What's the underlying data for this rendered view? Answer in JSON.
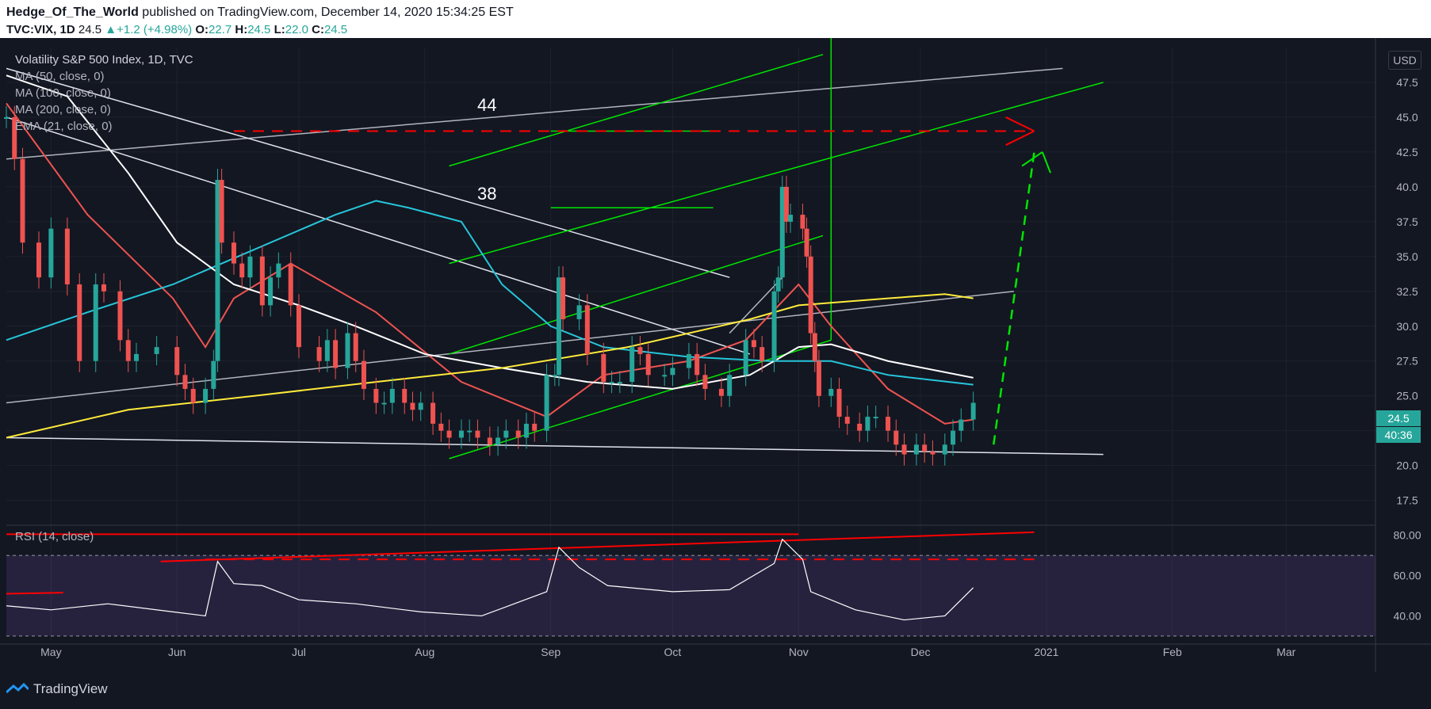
{
  "header": {
    "author": "Hedge_Of_The_World",
    "published": " published on TradingView.com, December 14, 2020 15:34:25 EST",
    "symbol": "TVC:VIX, 1D",
    "last": "24.5",
    "change": "+1.2 (+4.98%)",
    "o_label": "O:",
    "o_val": "22.7",
    "h_label": "H:",
    "h_val": "24.5",
    "l_label": "L:",
    "l_val": "22.0",
    "c_label": "C:",
    "c_val": "24.5"
  },
  "legend": {
    "title": "Volatility S&P 500 Index, 1D, TVC",
    "ma50": "MA (50, close, 0)",
    "ma100": "MA (100, close, 0)",
    "ma200": "MA (200, close, 0)",
    "ema21": "EMA (21, close, 0)",
    "rsi": "RSI (14, close)"
  },
  "currency": "USD",
  "price_tag": "24.5",
  "countdown_tag": "40:36",
  "annotations": {
    "level_44": "44",
    "level_38": "38"
  },
  "brand": "TradingView",
  "colors": {
    "background": "#131722",
    "up": "#26a69a",
    "down": "#ef5350",
    "ma50": "#ef5350",
    "ma100": "#26c6da",
    "ma200": "#ffffff",
    "ema21": "#ffeb3b",
    "trend_green": "#00e600",
    "resistance_red": "#ff0000",
    "rsi": "#ffffff"
  },
  "chart_data": [
    {
      "type": "candlestick",
      "title": "Volatility S&P 500 Index, 1D, TVC",
      "ylabel": "USD",
      "ylim": [
        16,
        50
      ],
      "y_ticks": [
        "17.5",
        "20.0",
        "22.5",
        "25.0",
        "27.5",
        "30.0",
        "32.5",
        "35.0",
        "37.5",
        "40.0",
        "42.5",
        "45.0",
        "47.5"
      ],
      "x_ticks": [
        {
          "label": "May",
          "date": "2020-05-01"
        },
        {
          "label": "Jun",
          "date": "2020-06-01"
        },
        {
          "label": "Jul",
          "date": "2020-07-01"
        },
        {
          "label": "Aug",
          "date": "2020-08-01"
        },
        {
          "label": "Sep",
          "date": "2020-09-01"
        },
        {
          "label": "Oct",
          "date": "2020-10-01"
        },
        {
          "label": "Nov",
          "date": "2020-11-01"
        },
        {
          "label": "Dec",
          "date": "2020-12-01"
        },
        {
          "label": "2021",
          "date": "2021-01-01"
        },
        {
          "label": "Feb",
          "date": "2021-02-01"
        },
        {
          "label": "Mar",
          "date": "2021-03-01"
        }
      ],
      "xlim": [
        "2020-04-20",
        "2021-03-23"
      ],
      "close_path": [
        [
          "2020-04-20",
          45.0
        ],
        [
          "2020-04-22",
          42.0
        ],
        [
          "2020-04-24",
          36.0
        ],
        [
          "2020-04-28",
          33.5
        ],
        [
          "2020-05-01",
          37.0
        ],
        [
          "2020-05-05",
          33.0
        ],
        [
          "2020-05-08",
          27.5
        ],
        [
          "2020-05-12",
          33.0
        ],
        [
          "2020-05-14",
          32.5
        ],
        [
          "2020-05-18",
          29.0
        ],
        [
          "2020-05-20",
          27.5
        ],
        [
          "2020-05-22",
          28.0
        ],
        [
          "2020-05-27",
          28.5
        ],
        [
          "2020-06-01",
          26.5
        ],
        [
          "2020-06-03",
          25.5
        ],
        [
          "2020-06-05",
          24.5
        ],
        [
          "2020-06-08",
          25.5
        ],
        [
          "2020-06-10",
          27.5
        ],
        [
          "2020-06-11",
          40.5
        ],
        [
          "2020-06-12",
          36.0
        ],
        [
          "2020-06-15",
          34.5
        ],
        [
          "2020-06-17",
          33.5
        ],
        [
          "2020-06-19",
          35.0
        ],
        [
          "2020-06-22",
          31.5
        ],
        [
          "2020-06-24",
          33.5
        ],
        [
          "2020-06-26",
          34.5
        ],
        [
          "2020-06-29",
          31.5
        ],
        [
          "2020-07-01",
          28.5
        ],
        [
          "2020-07-06",
          27.5
        ],
        [
          "2020-07-08",
          29.0
        ],
        [
          "2020-07-10",
          27.0
        ],
        [
          "2020-07-13",
          29.5
        ],
        [
          "2020-07-15",
          27.5
        ],
        [
          "2020-07-17",
          25.5
        ],
        [
          "2020-07-20",
          24.5
        ],
        [
          "2020-07-22",
          24.5
        ],
        [
          "2020-07-24",
          25.5
        ],
        [
          "2020-07-27",
          24.5
        ],
        [
          "2020-07-29",
          24.0
        ],
        [
          "2020-07-31",
          24.5
        ],
        [
          "2020-08-03",
          23.0
        ],
        [
          "2020-08-05",
          22.5
        ],
        [
          "2020-08-07",
          22.0
        ],
        [
          "2020-08-10",
          22.5
        ],
        [
          "2020-08-12",
          22.5
        ],
        [
          "2020-08-14",
          22.0
        ],
        [
          "2020-08-17",
          21.5
        ],
        [
          "2020-08-19",
          22.0
        ],
        [
          "2020-08-21",
          22.5
        ],
        [
          "2020-08-24",
          22.0
        ],
        [
          "2020-08-26",
          23.0
        ],
        [
          "2020-08-28",
          22.5
        ],
        [
          "2020-08-31",
          26.5
        ],
        [
          "2020-09-02",
          26.5
        ],
        [
          "2020-09-03",
          33.5
        ],
        [
          "2020-09-04",
          30.5
        ],
        [
          "2020-09-08",
          31.5
        ],
        [
          "2020-09-10",
          28.0
        ],
        [
          "2020-09-14",
          26.0
        ],
        [
          "2020-09-16",
          26.0
        ],
        [
          "2020-09-18",
          26.0
        ],
        [
          "2020-09-21",
          28.5
        ],
        [
          "2020-09-23",
          28.0
        ],
        [
          "2020-09-25",
          26.5
        ],
        [
          "2020-09-29",
          26.5
        ],
        [
          "2020-10-01",
          27.0
        ],
        [
          "2020-10-05",
          28.0
        ],
        [
          "2020-10-07",
          26.5
        ],
        [
          "2020-10-09",
          25.5
        ],
        [
          "2020-10-13",
          25.0
        ],
        [
          "2020-10-15",
          26.5
        ],
        [
          "2020-10-19",
          29.0
        ],
        [
          "2020-10-21",
          28.5
        ],
        [
          "2020-10-23",
          27.5
        ],
        [
          "2020-10-26",
          32.5
        ],
        [
          "2020-10-27",
          33.5
        ],
        [
          "2020-10-28",
          40.0
        ],
        [
          "2020-10-29",
          37.5
        ],
        [
          "2020-10-30",
          38.0
        ],
        [
          "2020-11-02",
          37.0
        ],
        [
          "2020-11-03",
          35.0
        ],
        [
          "2020-11-04",
          29.5
        ],
        [
          "2020-11-05",
          27.5
        ],
        [
          "2020-11-06",
          25.0
        ],
        [
          "2020-11-09",
          25.5
        ],
        [
          "2020-11-11",
          23.5
        ],
        [
          "2020-11-13",
          23.0
        ],
        [
          "2020-11-16",
          22.5
        ],
        [
          "2020-11-18",
          23.5
        ],
        [
          "2020-11-20",
          23.5
        ],
        [
          "2020-11-23",
          22.5
        ],
        [
          "2020-11-25",
          21.5
        ],
        [
          "2020-11-27",
          20.8
        ],
        [
          "2020-11-30",
          21.5
        ],
        [
          "2020-12-02",
          21.0
        ],
        [
          "2020-12-04",
          20.8
        ],
        [
          "2020-12-07",
          21.5
        ],
        [
          "2020-12-09",
          22.5
        ],
        [
          "2020-12-11",
          23.3
        ],
        [
          "2020-12-14",
          24.5
        ]
      ],
      "moving_averages": [
        {
          "name": "MA (50, close, 0)",
          "color": "#ef5350",
          "points": [
            [
              "2020-04-20",
              46.0
            ],
            [
              "2020-05-10",
              38.0
            ],
            [
              "2020-05-31",
              32.0
            ],
            [
              "2020-06-08",
              28.5
            ],
            [
              "2020-06-15",
              32.0
            ],
            [
              "2020-06-29",
              34.5
            ],
            [
              "2020-07-20",
              31.0
            ],
            [
              "2020-08-10",
              26.0
            ],
            [
              "2020-08-31",
              23.5
            ],
            [
              "2020-09-14",
              26.5
            ],
            [
              "2020-10-05",
              27.5
            ],
            [
              "2020-10-19",
              29.0
            ],
            [
              "2020-11-01",
              33.0
            ],
            [
              "2020-11-09",
              30.0
            ],
            [
              "2020-11-23",
              25.5
            ],
            [
              "2020-12-07",
              23.0
            ],
            [
              "2020-12-14",
              23.3
            ]
          ]
        },
        {
          "name": "MA (100, close, 0)",
          "color": "#26c6da",
          "points": [
            [
              "2020-04-20",
              29.0
            ],
            [
              "2020-05-10",
              31.0
            ],
            [
              "2020-05-31",
              33.0
            ],
            [
              "2020-06-20",
              35.5
            ],
            [
              "2020-07-10",
              38.0
            ],
            [
              "2020-07-20",
              39.0
            ],
            [
              "2020-07-28",
              38.5
            ],
            [
              "2020-08-10",
              37.5
            ],
            [
              "2020-08-20",
              33.0
            ],
            [
              "2020-09-01",
              30.0
            ],
            [
              "2020-09-14",
              28.5
            ],
            [
              "2020-10-05",
              27.8
            ],
            [
              "2020-10-25",
              27.5
            ],
            [
              "2020-11-09",
              27.5
            ],
            [
              "2020-11-23",
              26.5
            ],
            [
              "2020-12-14",
              25.8
            ]
          ]
        },
        {
          "name": "MA (200, close, 0)",
          "color": "#ffffff",
          "points": [
            [
              "2020-04-20",
              48.0
            ],
            [
              "2020-05-05",
              46.5
            ],
            [
              "2020-05-20",
              41.0
            ],
            [
              "2020-06-01",
              36.0
            ],
            [
              "2020-06-15",
              33.0
            ],
            [
              "2020-07-01",
              31.5
            ],
            [
              "2020-07-15",
              30.0
            ],
            [
              "2020-08-01",
              28.0
            ],
            [
              "2020-08-20",
              27.0
            ],
            [
              "2020-09-10",
              26.0
            ],
            [
              "2020-10-01",
              25.5
            ],
            [
              "2020-10-20",
              26.5
            ],
            [
              "2020-11-01",
              28.5
            ],
            [
              "2020-11-09",
              28.7
            ],
            [
              "2020-11-23",
              27.5
            ],
            [
              "2020-12-14",
              26.3
            ]
          ]
        },
        {
          "name": "EMA (21, close, 0)",
          "color": "#ffeb3b",
          "points": [
            [
              "2020-04-20",
              22.0
            ],
            [
              "2020-05-20",
              24.0
            ],
            [
              "2020-06-20",
              25.0
            ],
            [
              "2020-07-20",
              26.0
            ],
            [
              "2020-08-20",
              27.0
            ],
            [
              "2020-09-20",
              28.5
            ],
            [
              "2020-10-20",
              30.5
            ],
            [
              "2020-11-01",
              31.5
            ],
            [
              "2020-11-23",
              32.0
            ],
            [
              "2020-12-07",
              32.3
            ],
            [
              "2020-12-14",
              32.0
            ]
          ]
        }
      ],
      "price_tag": 24.5
    },
    {
      "type": "line",
      "title": "RSI (14, close)",
      "ylim": [
        28,
        83
      ],
      "y_ticks": [
        "40.00",
        "60.00",
        "80.00"
      ],
      "bands": [
        30,
        70
      ],
      "series": [
        {
          "name": "RSI (14, close)",
          "points": [
            [
              "2020-04-20",
              45
            ],
            [
              "2020-05-01",
              43
            ],
            [
              "2020-05-15",
              46
            ],
            [
              "2020-05-31",
              42
            ],
            [
              "2020-06-08",
              40
            ],
            [
              "2020-06-11",
              67
            ],
            [
              "2020-06-15",
              56
            ],
            [
              "2020-06-22",
              55
            ],
            [
              "2020-07-01",
              48
            ],
            [
              "2020-07-15",
              46
            ],
            [
              "2020-07-31",
              42
            ],
            [
              "2020-08-15",
              40
            ],
            [
              "2020-08-31",
              52
            ],
            [
              "2020-09-03",
              74
            ],
            [
              "2020-09-08",
              64
            ],
            [
              "2020-09-15",
              55
            ],
            [
              "2020-10-01",
              52
            ],
            [
              "2020-10-15",
              53
            ],
            [
              "2020-10-26",
              66
            ],
            [
              "2020-10-28",
              78
            ],
            [
              "2020-11-02",
              68
            ],
            [
              "2020-11-04",
              52
            ],
            [
              "2020-11-15",
              43
            ],
            [
              "2020-11-27",
              38
            ],
            [
              "2020-12-07",
              40
            ],
            [
              "2020-12-14",
              54
            ]
          ]
        }
      ]
    }
  ]
}
